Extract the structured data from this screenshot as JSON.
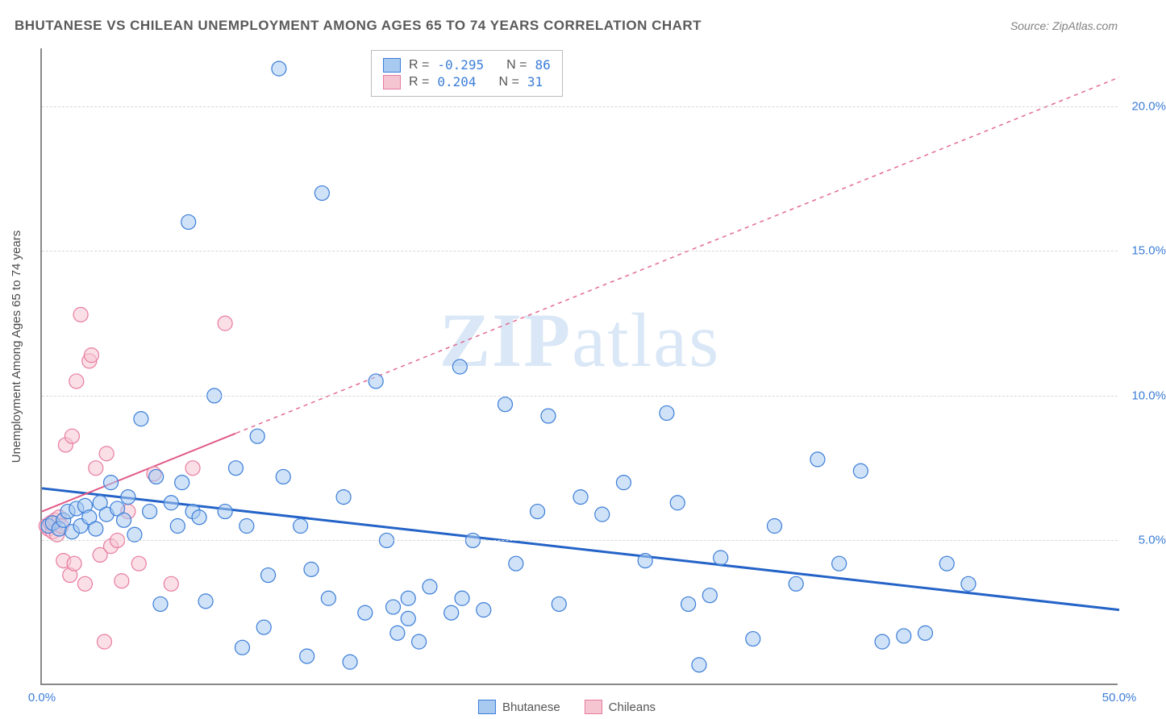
{
  "title": "BHUTANESE VS CHILEAN UNEMPLOYMENT AMONG AGES 65 TO 74 YEARS CORRELATION CHART",
  "source": "Source: ZipAtlas.com",
  "y_axis_label": "Unemployment Among Ages 65 to 74 years",
  "watermark_bold": "ZIP",
  "watermark_rest": "atlas",
  "chart": {
    "type": "scatter",
    "xlim": [
      0,
      50
    ],
    "ylim": [
      0,
      22
    ],
    "x_ticks": [
      {
        "v": 0,
        "label": "0.0%"
      },
      {
        "v": 50,
        "label": "50.0%"
      }
    ],
    "y_ticks": [
      {
        "v": 5,
        "label": "5.0%"
      },
      {
        "v": 10,
        "label": "10.0%"
      },
      {
        "v": 15,
        "label": "15.0%"
      },
      {
        "v": 20,
        "label": "20.0%"
      }
    ],
    "background_color": "#ffffff",
    "grid_color": "#d8d8d8",
    "marker_radius": 9,
    "marker_stroke_width": 1.2,
    "series": [
      {
        "name": "Bhutanese",
        "fill": "#a8caf0",
        "stroke": "#3b7dd8",
        "fill_opacity": 0.55,
        "trend": {
          "x0": 0,
          "y0": 6.8,
          "x1": 50,
          "y1": 2.6,
          "color": "#2463c7",
          "width": 3,
          "dash": "none",
          "extent_x": 50
        },
        "R_label": "R =",
        "R_value": "-0.295",
        "N_label": "N =",
        "N_value": "86",
        "points": [
          [
            0.3,
            5.5
          ],
          [
            0.5,
            5.6
          ],
          [
            0.8,
            5.4
          ],
          [
            1.0,
            5.7
          ],
          [
            1.2,
            6.0
          ],
          [
            1.4,
            5.3
          ],
          [
            1.6,
            6.1
          ],
          [
            1.8,
            5.5
          ],
          [
            2.0,
            6.2
          ],
          [
            2.2,
            5.8
          ],
          [
            2.5,
            5.4
          ],
          [
            2.7,
            6.3
          ],
          [
            3.0,
            5.9
          ],
          [
            3.2,
            7.0
          ],
          [
            3.5,
            6.1
          ],
          [
            3.8,
            5.7
          ],
          [
            4.0,
            6.5
          ],
          [
            4.3,
            5.2
          ],
          [
            4.6,
            9.2
          ],
          [
            5.0,
            6.0
          ],
          [
            5.3,
            7.2
          ],
          [
            5.5,
            2.8
          ],
          [
            6.0,
            6.3
          ],
          [
            6.3,
            5.5
          ],
          [
            6.5,
            7.0
          ],
          [
            6.8,
            16.0
          ],
          [
            7.0,
            6.0
          ],
          [
            7.3,
            5.8
          ],
          [
            7.6,
            2.9
          ],
          [
            8.0,
            10.0
          ],
          [
            8.5,
            6.0
          ],
          [
            9.0,
            7.5
          ],
          [
            9.3,
            1.3
          ],
          [
            9.5,
            5.5
          ],
          [
            10.0,
            8.6
          ],
          [
            10.3,
            2.0
          ],
          [
            10.5,
            3.8
          ],
          [
            11.0,
            21.3
          ],
          [
            11.2,
            7.2
          ],
          [
            12.0,
            5.5
          ],
          [
            12.3,
            1.0
          ],
          [
            12.5,
            4.0
          ],
          [
            13.0,
            17.0
          ],
          [
            13.3,
            3.0
          ],
          [
            14.0,
            6.5
          ],
          [
            14.3,
            0.8
          ],
          [
            15.0,
            2.5
          ],
          [
            15.5,
            10.5
          ],
          [
            16.0,
            5.0
          ],
          [
            16.3,
            2.7
          ],
          [
            16.5,
            1.8
          ],
          [
            17.0,
            2.3
          ],
          [
            17.0,
            3.0
          ],
          [
            17.5,
            1.5
          ],
          [
            18.0,
            3.4
          ],
          [
            19.0,
            2.5
          ],
          [
            19.4,
            11.0
          ],
          [
            19.5,
            3.0
          ],
          [
            20.0,
            5.0
          ],
          [
            20.5,
            2.6
          ],
          [
            21.5,
            9.7
          ],
          [
            22.0,
            4.2
          ],
          [
            23.0,
            6.0
          ],
          [
            23.5,
            9.3
          ],
          [
            24.0,
            2.8
          ],
          [
            25.0,
            6.5
          ],
          [
            26.0,
            5.9
          ],
          [
            27.0,
            7.0
          ],
          [
            28.0,
            4.3
          ],
          [
            29.0,
            9.4
          ],
          [
            29.5,
            6.3
          ],
          [
            30.0,
            2.8
          ],
          [
            31.0,
            3.1
          ],
          [
            31.5,
            4.4
          ],
          [
            33.0,
            1.6
          ],
          [
            34.0,
            5.5
          ],
          [
            35.0,
            3.5
          ],
          [
            36.0,
            7.8
          ],
          [
            37.0,
            4.2
          ],
          [
            38.0,
            7.4
          ],
          [
            39.0,
            1.5
          ],
          [
            40.0,
            1.7
          ],
          [
            41.0,
            1.8
          ],
          [
            42.0,
            4.2
          ],
          [
            30.5,
            0.7
          ],
          [
            43.0,
            3.5
          ]
        ]
      },
      {
        "name": "Chileans",
        "fill": "#f5c5d1",
        "stroke": "#e87ba0",
        "fill_opacity": 0.55,
        "trend": {
          "x0": 0,
          "y0": 6.0,
          "x1": 50,
          "y1": 21.0,
          "color": "#e05a88",
          "width": 2,
          "dash": "5,5",
          "extent_x": 9
        },
        "R_label": "R =",
        "R_value": " 0.204",
        "N_label": "N =",
        "N_value": " 31",
        "points": [
          [
            0.2,
            5.5
          ],
          [
            0.3,
            5.4
          ],
          [
            0.4,
            5.6
          ],
          [
            0.5,
            5.3
          ],
          [
            0.6,
            5.7
          ],
          [
            0.7,
            5.2
          ],
          [
            0.8,
            5.8
          ],
          [
            0.9,
            5.5
          ],
          [
            1.0,
            4.3
          ],
          [
            1.1,
            8.3
          ],
          [
            1.3,
            3.8
          ],
          [
            1.4,
            8.6
          ],
          [
            1.5,
            4.2
          ],
          [
            1.6,
            10.5
          ],
          [
            1.8,
            12.8
          ],
          [
            2.0,
            3.5
          ],
          [
            2.2,
            11.2
          ],
          [
            2.3,
            11.4
          ],
          [
            2.5,
            7.5
          ],
          [
            2.7,
            4.5
          ],
          [
            2.9,
            1.5
          ],
          [
            3.0,
            8.0
          ],
          [
            3.2,
            4.8
          ],
          [
            3.5,
            5.0
          ],
          [
            3.7,
            3.6
          ],
          [
            4.0,
            6.0
          ],
          [
            4.5,
            4.2
          ],
          [
            5.2,
            7.3
          ],
          [
            7.0,
            7.5
          ],
          [
            8.5,
            12.5
          ],
          [
            6.0,
            3.5
          ]
        ]
      }
    ]
  },
  "legend_bottom": [
    {
      "swatch": "blue",
      "label": "Bhutanese"
    },
    {
      "swatch": "pink",
      "label": "Chileans"
    }
  ]
}
